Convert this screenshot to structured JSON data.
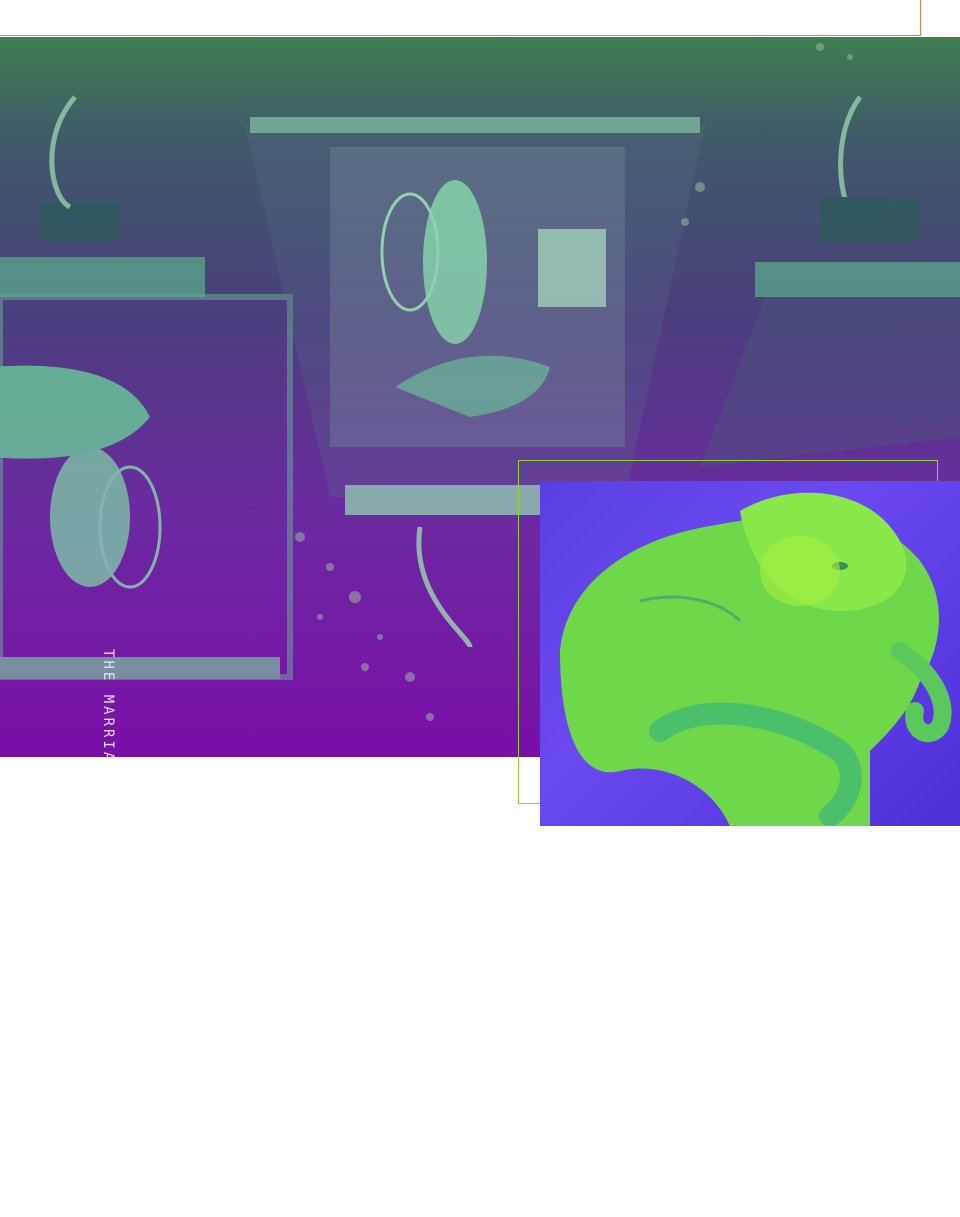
{
  "hero": {
    "caption": "THE MARRIAGE OF",
    "image_name": "machine-boxes-photo"
  },
  "inset": {
    "image_name": "elephant-sculpture-photo"
  },
  "colors": {
    "frame_orange": "#f07b3a",
    "frame_green": "#8fd43a",
    "gradient_top": "#3f7e52",
    "gradient_bottom": "#7a0fa8",
    "photo_green": "#7fe04a",
    "photo_violet": "#5a3fe0"
  }
}
